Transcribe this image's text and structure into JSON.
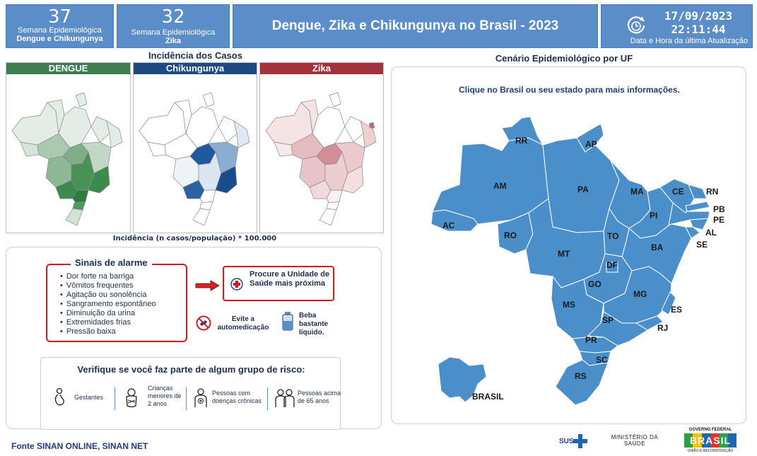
{
  "header": {
    "week_dengue": {
      "number": "37",
      "label": "Semana Epidemiológica",
      "sub": "Dengue e Chikungunya"
    },
    "week_zika": {
      "number": "32",
      "label": "Semana Epidemiológica",
      "sub": "Zika"
    },
    "title": "Dengue, Zika e Chikungunya no Brasil - 2023",
    "update": {
      "date": "17/09/2023",
      "time": "22:11:44",
      "label": "Data e Hora da última Atualização"
    }
  },
  "incidence": {
    "title": "Incidência dos Casos",
    "panels": [
      {
        "label": "DENGUE",
        "color": "#3e7d4f"
      },
      {
        "label": "Chikungunya",
        "color": "#1d4a82"
      },
      {
        "label": "Zika",
        "color": "#a3323c"
      }
    ],
    "footnote": "Incidência (n casos/população) * 100.000"
  },
  "alarm": {
    "title": "Sinais de alarme",
    "items": [
      "Dor forte na barriga",
      "Vômitos frequentes",
      "Agitação ou sonolência",
      "Sangramento espontâneo",
      "Diminuição da urina",
      "Extremidades frias",
      "Pressão baixa"
    ],
    "procure": "Procure a Unidade de Saúde mais próxima",
    "tip_self": "Evite a automedicação",
    "tip_drink": "Beba bastante líquido."
  },
  "risk": {
    "title": "Verifique se você faz parte de algum grupo de risco:",
    "groups": [
      {
        "label": "Gestantes",
        "icon": "pregnant-icon"
      },
      {
        "label": "Crianças menores de 2 anos",
        "icon": "baby-icon"
      },
      {
        "label": "Pessoas com doenças crônicas",
        "icon": "chronic-icon"
      },
      {
        "label": "Pessoas acima de 65 anos",
        "icon": "elderly-icon"
      }
    ]
  },
  "source": "Fonte SINAN ONLINE, SINAN NET",
  "uf_map": {
    "title": "Cenário Epidemiológico por UF",
    "instruction": "Clique no Brasil ou seu estado para mais informações.",
    "fill": "#4a8fc9",
    "states": [
      "RR",
      "AP",
      "AM",
      "PA",
      "MA",
      "CE",
      "RN",
      "PB",
      "PE",
      "PI",
      "AL",
      "SE",
      "AC",
      "RO",
      "TO",
      "BA",
      "MT",
      "DF",
      "GO",
      "MG",
      "ES",
      "MS",
      "SP",
      "RJ",
      "PR",
      "SC",
      "RS"
    ],
    "brasil_label": "BRASIL"
  },
  "logos": {
    "sus": "SUS",
    "ministry": "MINISTÉRIO DA SAÚDE",
    "gov": "GOVERNO FEDERAL",
    "brasil": "BRASIL",
    "gov_sub": "UNIÃO E RECONSTRUÇÃO"
  }
}
